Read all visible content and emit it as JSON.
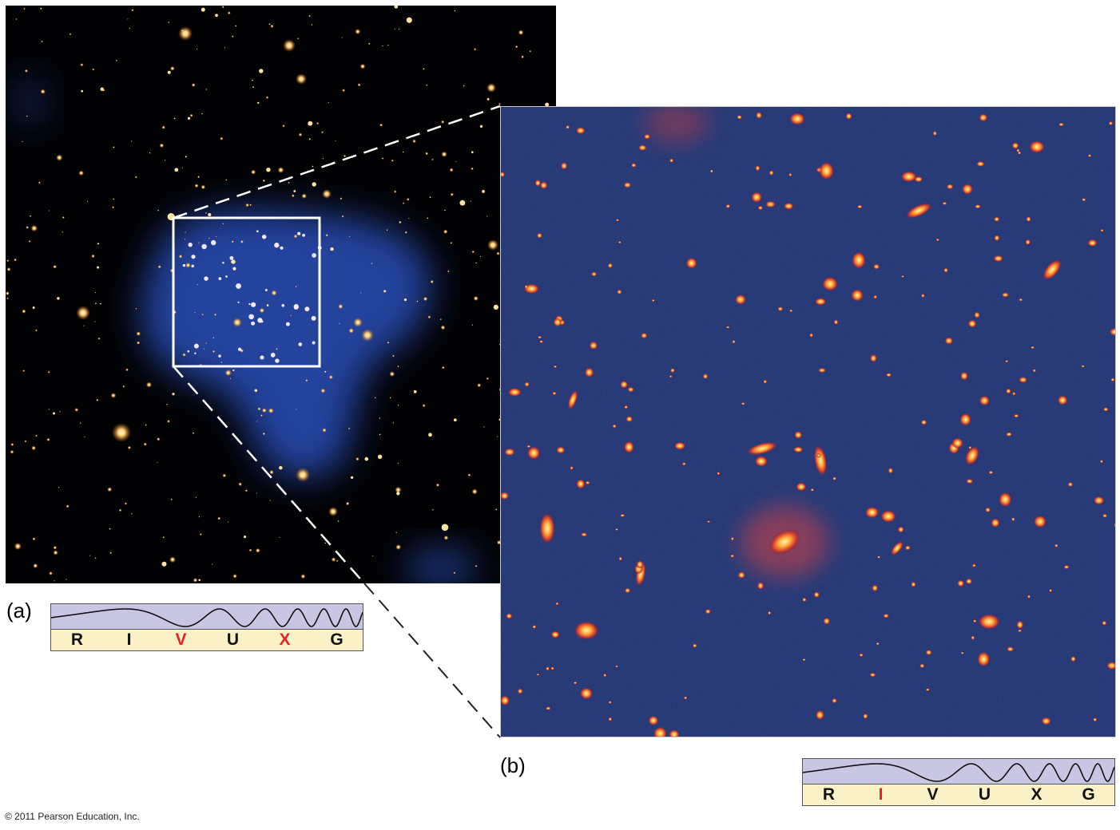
{
  "panel_a": {
    "label": "(a)",
    "bands": [
      "R",
      "I",
      "V",
      "U",
      "X",
      "G"
    ],
    "highlighted_bands": [
      "V",
      "X"
    ]
  },
  "panel_b": {
    "label": "(b)",
    "bands": [
      "R",
      "I",
      "V",
      "U",
      "X",
      "G"
    ],
    "highlighted_bands": [
      "I"
    ]
  },
  "footer": {
    "copyright": "© 2011 Pearson Education, Inc."
  },
  "colors": {
    "highlight": "#e8222a",
    "spectrum_wave_bg": "#c9c6e3",
    "spectrum_band_bg": "#fbf1c6",
    "xray_glow": "#2f5ed6",
    "galaxy_core": "#fff3a0",
    "galaxy_halo": "#e0542a"
  }
}
